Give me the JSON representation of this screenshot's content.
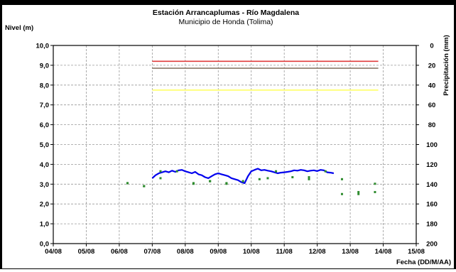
{
  "chart_data": {
    "type": "line",
    "title": "Estación Arrancaplumas - Río Magdalena",
    "subtitle": "Municipio de Honda (Tolima)",
    "ylabel": "Nivel (m)",
    "y2label": "Precipitación (mm)",
    "xlabel": "Fecha (DD/M/AA)",
    "x_ticks": [
      "04/08",
      "05/08",
      "06/08",
      "07/08",
      "08/08",
      "09/08",
      "10/08",
      "11/08",
      "12/08",
      "13/08",
      "14/08",
      "15/08"
    ],
    "y_ticks": [
      "0,0",
      "1,0",
      "2,0",
      "3,0",
      "4,0",
      "5,0",
      "6,0",
      "7,0",
      "8,0",
      "9,0",
      "10,0"
    ],
    "y2_ticks": [
      "0",
      "20",
      "40",
      "60",
      "80",
      "100",
      "120",
      "140",
      "160",
      "180",
      "200"
    ],
    "ylim": [
      0,
      10
    ],
    "y2lim": [
      0,
      200
    ],
    "xlim": [
      0,
      11
    ],
    "grid": true,
    "thresholds": [
      {
        "value": 9.2,
        "color": "#e03c3c",
        "x_start": 3.0,
        "x_end": 9.85
      },
      {
        "value": 8.85,
        "color": "#8a7a6a",
        "x_start": 3.0,
        "x_end": 9.85
      },
      {
        "value": 7.75,
        "color": "#ffff66",
        "x_start": 3.0,
        "x_end": 9.85
      }
    ],
    "series": [
      {
        "type": "line",
        "color": "#0000ee",
        "x": [
          3.0,
          3.1,
          3.2,
          3.3,
          3.4,
          3.5,
          3.6,
          3.7,
          3.8,
          3.9,
          4.0,
          4.1,
          4.2,
          4.3,
          4.4,
          4.5,
          4.6,
          4.7,
          4.8,
          4.9,
          5.0,
          5.1,
          5.2,
          5.3,
          5.4,
          5.5,
          5.6,
          5.7,
          5.8,
          5.9,
          6.0,
          6.1,
          6.2,
          6.3,
          6.4,
          6.5,
          6.6,
          6.7,
          6.8,
          6.9,
          7.0,
          7.1,
          7.2,
          7.3,
          7.4,
          7.5,
          7.6,
          7.7,
          7.8,
          7.9,
          8.0,
          8.1,
          8.2,
          8.3,
          8.4,
          8.5
        ],
        "values": [
          3.3,
          3.45,
          3.55,
          3.6,
          3.65,
          3.6,
          3.68,
          3.62,
          3.7,
          3.72,
          3.65,
          3.6,
          3.55,
          3.62,
          3.5,
          3.45,
          3.35,
          3.3,
          3.4,
          3.5,
          3.55,
          3.5,
          3.45,
          3.4,
          3.3,
          3.25,
          3.2,
          3.1,
          3.05,
          3.4,
          3.65,
          3.72,
          3.78,
          3.7,
          3.72,
          3.68,
          3.65,
          3.6,
          3.55,
          3.58,
          3.6,
          3.62,
          3.65,
          3.7,
          3.68,
          3.72,
          3.7,
          3.65,
          3.68,
          3.7,
          3.66,
          3.72,
          3.7,
          3.6,
          3.58,
          3.55
        ]
      },
      {
        "type": "scatter",
        "color": "#2e8b2e",
        "axis": "secondary",
        "x": [
          2.25,
          2.75,
          3.25,
          3.75,
          4.25,
          4.75,
          5.25,
          5.75,
          6.25,
          6.75,
          7.25,
          7.75,
          8.25,
          8.75,
          9.25,
          9.75
        ],
        "values": [
          139,
          142,
          127,
          127,
          139,
          137,
          139,
          137,
          135,
          127,
          133,
          133,
          127,
          135,
          150,
          148
        ]
      },
      {
        "type": "scatter",
        "color": "#2e8b2e",
        "x": [
          2.25,
          2.75,
          3.25,
          4.25,
          4.75,
          5.25,
          5.75,
          6.5,
          7.75,
          8.75,
          9.25,
          9.75
        ],
        "values": [
          3.05,
          2.9,
          3.3,
          3.02,
          3.15,
          3.02,
          3.15,
          3.3,
          3.25,
          2.5,
          2.6,
          3.02
        ]
      }
    ]
  }
}
